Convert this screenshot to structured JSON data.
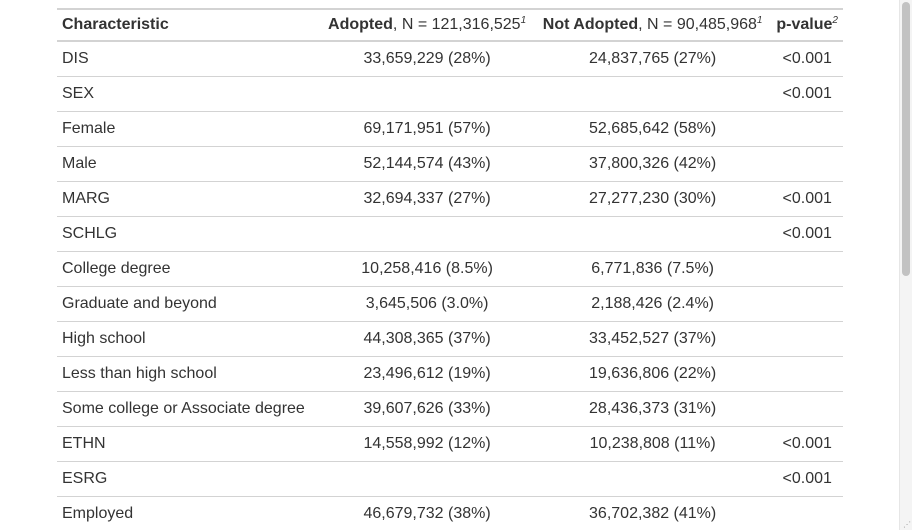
{
  "table": {
    "header": {
      "characteristic": "Characteristic",
      "adopted_label": "Adopted",
      "adopted_n": ", N = 121,316,525",
      "adopted_fn": "1",
      "not_adopted_label": "Not Adopted",
      "not_adopted_n": ", N = 90,485,968",
      "not_adopted_fn": "1",
      "pvalue_label": "p-value",
      "pvalue_fn": "2"
    },
    "rows": [
      {
        "label": "DIS",
        "adopted": "33,659,229 (28%)",
        "not_adopted": "24,837,765 (27%)",
        "p": "<0.001",
        "indent": false
      },
      {
        "label": "SEX",
        "adopted": "",
        "not_adopted": "",
        "p": "<0.001",
        "indent": false
      },
      {
        "label": "Female",
        "adopted": "69,171,951 (57%)",
        "not_adopted": "52,685,642 (58%)",
        "p": "",
        "indent": true
      },
      {
        "label": "Male",
        "adopted": "52,144,574 (43%)",
        "not_adopted": "37,800,326 (42%)",
        "p": "",
        "indent": true
      },
      {
        "label": "MARG",
        "adopted": "32,694,337 (27%)",
        "not_adopted": "27,277,230 (30%)",
        "p": "<0.001",
        "indent": false
      },
      {
        "label": "SCHLG",
        "adopted": "",
        "not_adopted": "",
        "p": "<0.001",
        "indent": false
      },
      {
        "label": "College degree",
        "adopted": "10,258,416 (8.5%)",
        "not_adopted": "6,771,836 (7.5%)",
        "p": "",
        "indent": true
      },
      {
        "label": "Graduate and beyond",
        "adopted": "3,645,506 (3.0%)",
        "not_adopted": "2,188,426 (2.4%)",
        "p": "",
        "indent": true
      },
      {
        "label": "High school",
        "adopted": "44,308,365 (37%)",
        "not_adopted": "33,452,527 (37%)",
        "p": "",
        "indent": true
      },
      {
        "label": "Less than high school",
        "adopted": "23,496,612 (19%)",
        "not_adopted": "19,636,806 (22%)",
        "p": "",
        "indent": true
      },
      {
        "label": "Some college or Associate degree",
        "adopted": "39,607,626 (33%)",
        "not_adopted": "28,436,373 (31%)",
        "p": "",
        "indent": true
      },
      {
        "label": "ETHN",
        "adopted": "14,558,992 (12%)",
        "not_adopted": "10,238,808 (11%)",
        "p": "<0.001",
        "indent": false
      },
      {
        "label": "ESRG",
        "adopted": "",
        "not_adopted": "",
        "p": "<0.001",
        "indent": false
      },
      {
        "label": "Employed",
        "adopted": "46,679,732 (38%)",
        "not_adopted": "36,702,382 (41%)",
        "p": "",
        "indent": true
      }
    ]
  },
  "scrollbar": {
    "grip_icon": "resize-grip-icon"
  }
}
